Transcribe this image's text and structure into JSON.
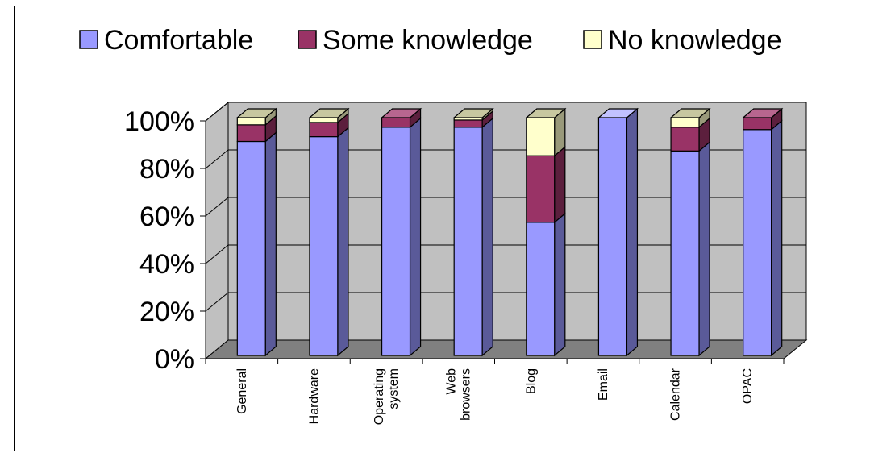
{
  "chart_data": {
    "type": "bar",
    "stacked": true,
    "percent_stacked": true,
    "three_d": true,
    "categories": [
      "General",
      "Hardware",
      "Operating system",
      "Web browsers",
      "Blog",
      "Email",
      "Calendar",
      "OPAC"
    ],
    "category_lines": [
      [
        "General"
      ],
      [
        "Hardware"
      ],
      [
        "Operating",
        "system"
      ],
      [
        "Web",
        "browsers"
      ],
      [
        "Blog"
      ],
      [
        "Email"
      ],
      [
        "Calendar"
      ],
      [
        "OPAC"
      ]
    ],
    "series": [
      {
        "name": "Comfortable",
        "color": "#9999ff",
        "side_color": "#5a5a99",
        "top_color": "#c2c2ff",
        "values": [
          90,
          92,
          96,
          96,
          56,
          100,
          86,
          95
        ]
      },
      {
        "name": "Some knowledge",
        "color": "#993366",
        "side_color": "#5c1f3d",
        "top_color": "#b8668f",
        "values": [
          7,
          6,
          4,
          3,
          28,
          0,
          10,
          5
        ]
      },
      {
        "name": "No knowledge",
        "color": "#ffffcc",
        "side_color": "#99997a",
        "top_color": "#c7c7a0",
        "values": [
          3,
          2,
          0,
          1,
          16,
          0,
          4,
          0
        ]
      }
    ],
    "ylim": [
      0,
      100
    ],
    "yticks": [
      "0%",
      "20%",
      "40%",
      "60%",
      "80%",
      "100%"
    ],
    "ytick_values": [
      0,
      20,
      40,
      60,
      80,
      100
    ],
    "legend_position": "top",
    "grid": true,
    "wall_color": "#c0c0c0",
    "floor_color": "#808080"
  }
}
